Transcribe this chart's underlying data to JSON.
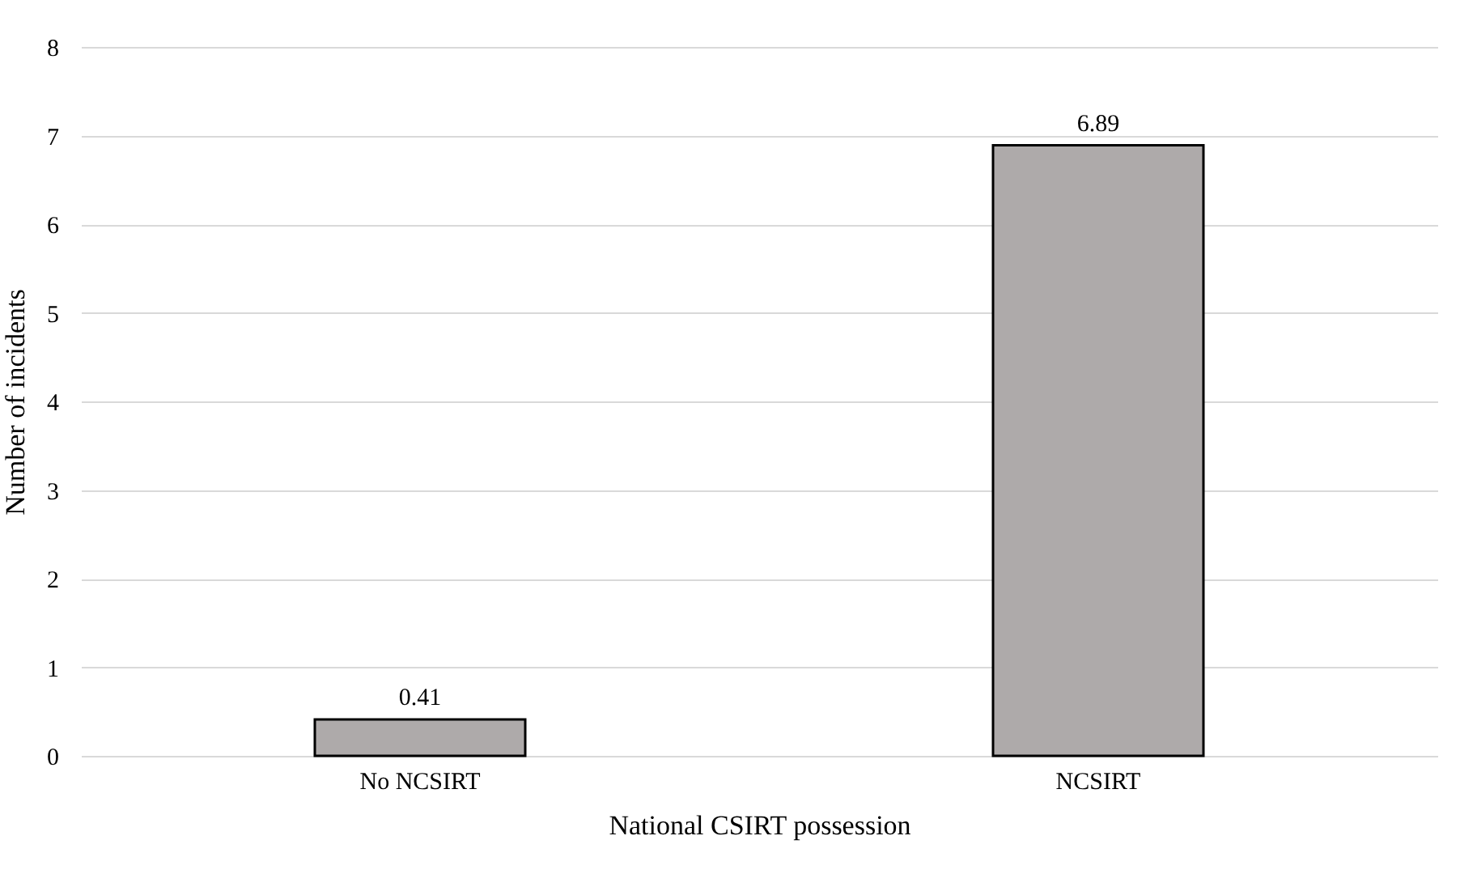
{
  "chart_data": {
    "type": "bar",
    "xlabel": "National CSIRT possession",
    "ylabel": "Number of incidents",
    "categories": [
      "No NCSIRT",
      "NCSIRT"
    ],
    "values": [
      0.41,
      6.89
    ],
    "color": "#aeaaaa",
    "ylim": [
      0,
      8
    ],
    "yticks": [
      0,
      1,
      2,
      3,
      4,
      5,
      6,
      7,
      8
    ],
    "grid": "y",
    "data_labels": true
  }
}
